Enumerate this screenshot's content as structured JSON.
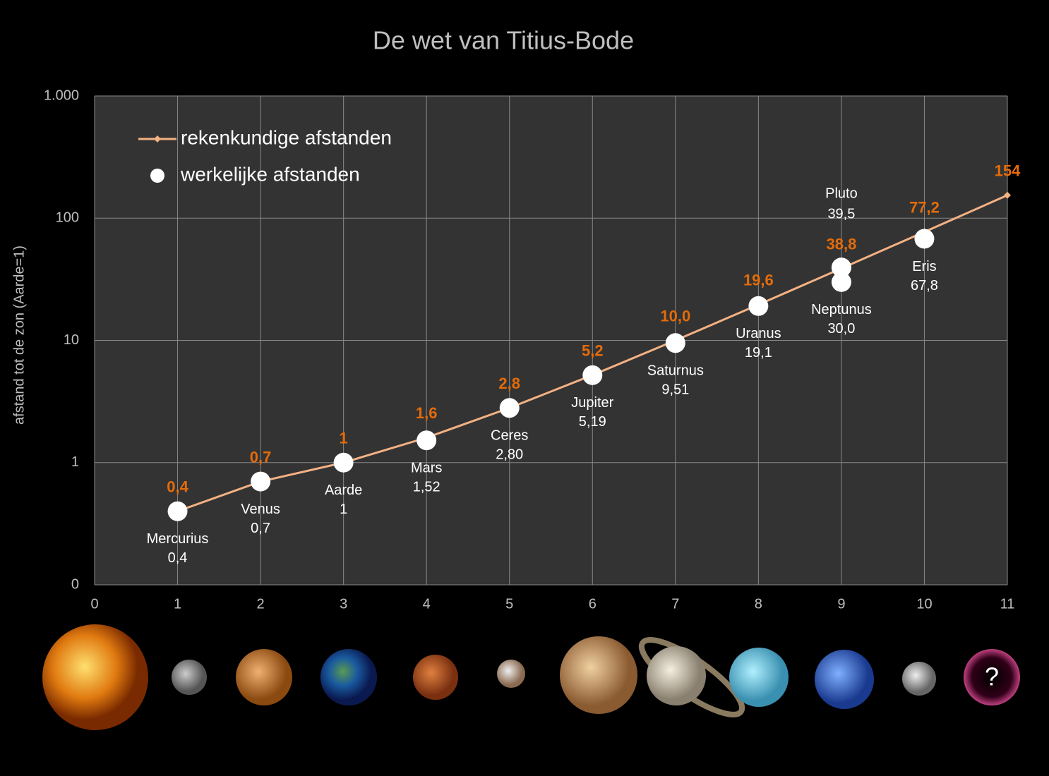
{
  "chart_data": {
    "type": "line",
    "title": "De wet van Titius-Bode",
    "y_label": "afstand tot de zon (Aarde=1)",
    "yscale": "log",
    "grid": true,
    "legend": "top-left",
    "xlim": [
      0,
      11
    ],
    "xticks": [
      0,
      1,
      2,
      3,
      4,
      5,
      6,
      7,
      8,
      9,
      10,
      11
    ],
    "ylim": [
      0.1,
      1000
    ],
    "yticks": [
      {
        "value": 0.1,
        "label": "0"
      },
      1,
      10,
      100,
      {
        "value": 1000,
        "label": "1.000"
      }
    ],
    "series": [
      {
        "name": "rekenkundige afstanden",
        "type": "line",
        "color": "#f4b183",
        "label_color": "#e46c0a",
        "x": [
          1,
          2,
          3,
          4,
          5,
          6,
          7,
          8,
          9,
          10,
          11
        ],
        "values": [
          0.4,
          0.7,
          1,
          1.6,
          2.8,
          5.2,
          10.0,
          19.6,
          38.8,
          77.2,
          154
        ],
        "value_labels": [
          "0,4",
          "0,7",
          "1",
          "1,6",
          "2,8",
          "5,2",
          "10,0",
          "19,6",
          "38,8",
          "77,2",
          "154"
        ]
      },
      {
        "name": "werkelijke afstanden",
        "type": "scatter",
        "color": "#ffffff",
        "label_color": "#ffffff",
        "x": [
          1,
          2,
          3,
          4,
          5,
          6,
          7,
          8,
          9,
          9,
          10
        ],
        "values": [
          0.4,
          0.7,
          1,
          1.52,
          2.8,
          5.19,
          9.51,
          19.1,
          30.0,
          39.5,
          67.8
        ],
        "labels": [
          "Mercurius",
          "Venus",
          "Aarde",
          "Mars",
          "Ceres",
          "Jupiter",
          "Saturnus",
          "Uranus",
          "Neptunus",
          "Pluto",
          "Eris"
        ],
        "value_labels": [
          "0,4",
          "0,7",
          "1",
          "1,52",
          "2,80",
          "5,19",
          "9,51",
          "19,1",
          "30,0",
          "39,5",
          "67,8"
        ]
      }
    ],
    "unknown_planet_label": "?"
  }
}
